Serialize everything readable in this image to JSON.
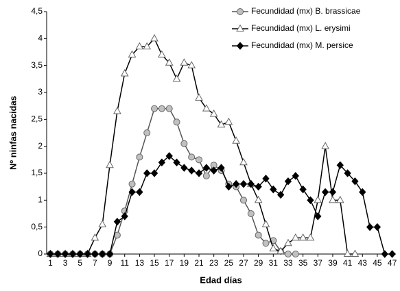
{
  "chart_data": {
    "type": "line",
    "x_label": "Edad días",
    "y_label": "Nº ninfas nacidas",
    "x": [
      1,
      2,
      3,
      4,
      5,
      6,
      7,
      8,
      9,
      10,
      11,
      12,
      13,
      14,
      15,
      16,
      17,
      18,
      19,
      20,
      21,
      22,
      23,
      24,
      25,
      26,
      27,
      28,
      29,
      30,
      31,
      32,
      33,
      34,
      35,
      36,
      37,
      38,
      39,
      40,
      41,
      42,
      43,
      44,
      45,
      46,
      47
    ],
    "series": [
      {
        "name": "Fecundidad (mx) B. brassicae",
        "color": "#555555",
        "marker": "circle",
        "marker_fill": "#c0c0c0",
        "values": [
          0,
          0,
          0,
          0,
          0,
          0,
          0,
          0,
          0,
          0.35,
          0.8,
          1.3,
          1.8,
          2.25,
          2.7,
          2.7,
          2.7,
          2.45,
          2.05,
          1.8,
          1.75,
          1.45,
          1.65,
          1.55,
          1.3,
          1.25,
          1.0,
          0.75,
          0.35,
          0.2,
          0.25,
          0.05,
          0,
          0,
          null,
          null,
          null,
          null,
          null,
          null,
          null,
          null,
          null,
          null,
          null,
          null,
          null
        ]
      },
      {
        "name": "Fecundidad (mx) L. erysimi",
        "color": "#000000",
        "marker": "triangle",
        "marker_fill": "#ffffff",
        "values": [
          0,
          0,
          0,
          0,
          0,
          0,
          0.3,
          0.55,
          1.65,
          2.65,
          3.35,
          3.7,
          3.85,
          3.85,
          4.0,
          3.7,
          3.55,
          3.25,
          3.55,
          3.5,
          2.9,
          2.7,
          2.6,
          2.4,
          2.45,
          2.1,
          1.7,
          1.3,
          1.0,
          0.55,
          0.1,
          0.05,
          0.2,
          0.3,
          0.3,
          0.3,
          1.0,
          2.0,
          1.0,
          1.0,
          0,
          0,
          null,
          null,
          null,
          null,
          null
        ]
      },
      {
        "name": "Fecundidad (mx) M. persice",
        "color": "#000000",
        "marker": "diamond",
        "marker_fill": "#000000",
        "values": [
          0,
          0,
          0,
          0,
          0,
          0,
          0,
          0,
          0,
          0.6,
          0.7,
          1.15,
          1.15,
          1.5,
          1.5,
          1.7,
          1.82,
          1.7,
          1.6,
          1.55,
          1.5,
          1.6,
          1.55,
          1.6,
          1.25,
          1.3,
          1.3,
          1.3,
          1.25,
          1.4,
          1.2,
          1.1,
          1.35,
          1.45,
          1.2,
          1.0,
          0.7,
          1.15,
          1.15,
          1.65,
          1.5,
          1.35,
          1.15,
          0.5,
          0.5,
          0,
          0
        ]
      }
    ],
    "xlim": [
      0.5,
      47.5
    ],
    "xticks": [
      1,
      3,
      5,
      7,
      9,
      11,
      13,
      15,
      17,
      19,
      21,
      23,
      25,
      27,
      29,
      31,
      33,
      35,
      37,
      39,
      41,
      43,
      45,
      47
    ],
    "ylim": [
      0,
      4.5
    ],
    "yticks": [
      0,
      {
        "value": 0.5,
        "label": "0,5"
      },
      1,
      {
        "value": 1.5,
        "label": "1,5"
      },
      2,
      {
        "value": 2.5,
        "label": "2,5"
      },
      3,
      {
        "value": 3.5,
        "label": "3,5"
      },
      4,
      {
        "value": 4.5,
        "label": "4,5"
      }
    ]
  }
}
